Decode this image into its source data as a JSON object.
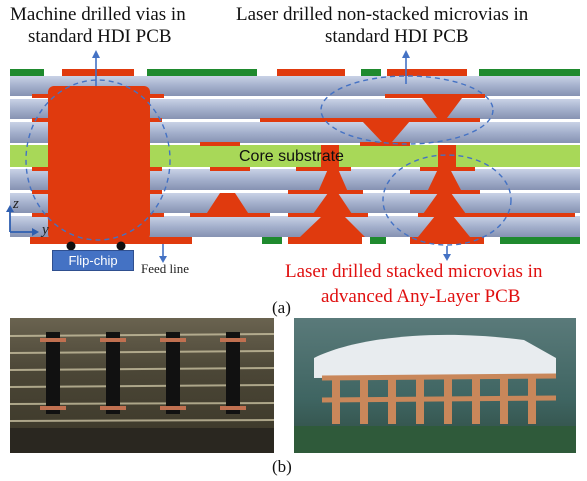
{
  "labels": {
    "machine_vias": [
      "Machine drilled vias in",
      "standard HDI PCB"
    ],
    "laser_nonstacked": [
      "Laser drilled non-stacked microvias in",
      "standard HDI PCB"
    ],
    "laser_stacked": [
      "Laser drilled stacked microvias in",
      "advanced Any-Layer PCB"
    ],
    "core": "Core substrate",
    "flip_chip": "Flip-chip",
    "feed_line": "Feed line",
    "axis_z": "z",
    "axis_y": "y",
    "panel_a": "(a)",
    "panel_b": "(b)"
  },
  "colors": {
    "copper": "#e03a0e",
    "core": "#a8d858",
    "dielectric": "#a7b3cf",
    "solder_mask": "#1f8a2e",
    "annotation_blue": "#4472c4",
    "red_text": "#e01010"
  }
}
